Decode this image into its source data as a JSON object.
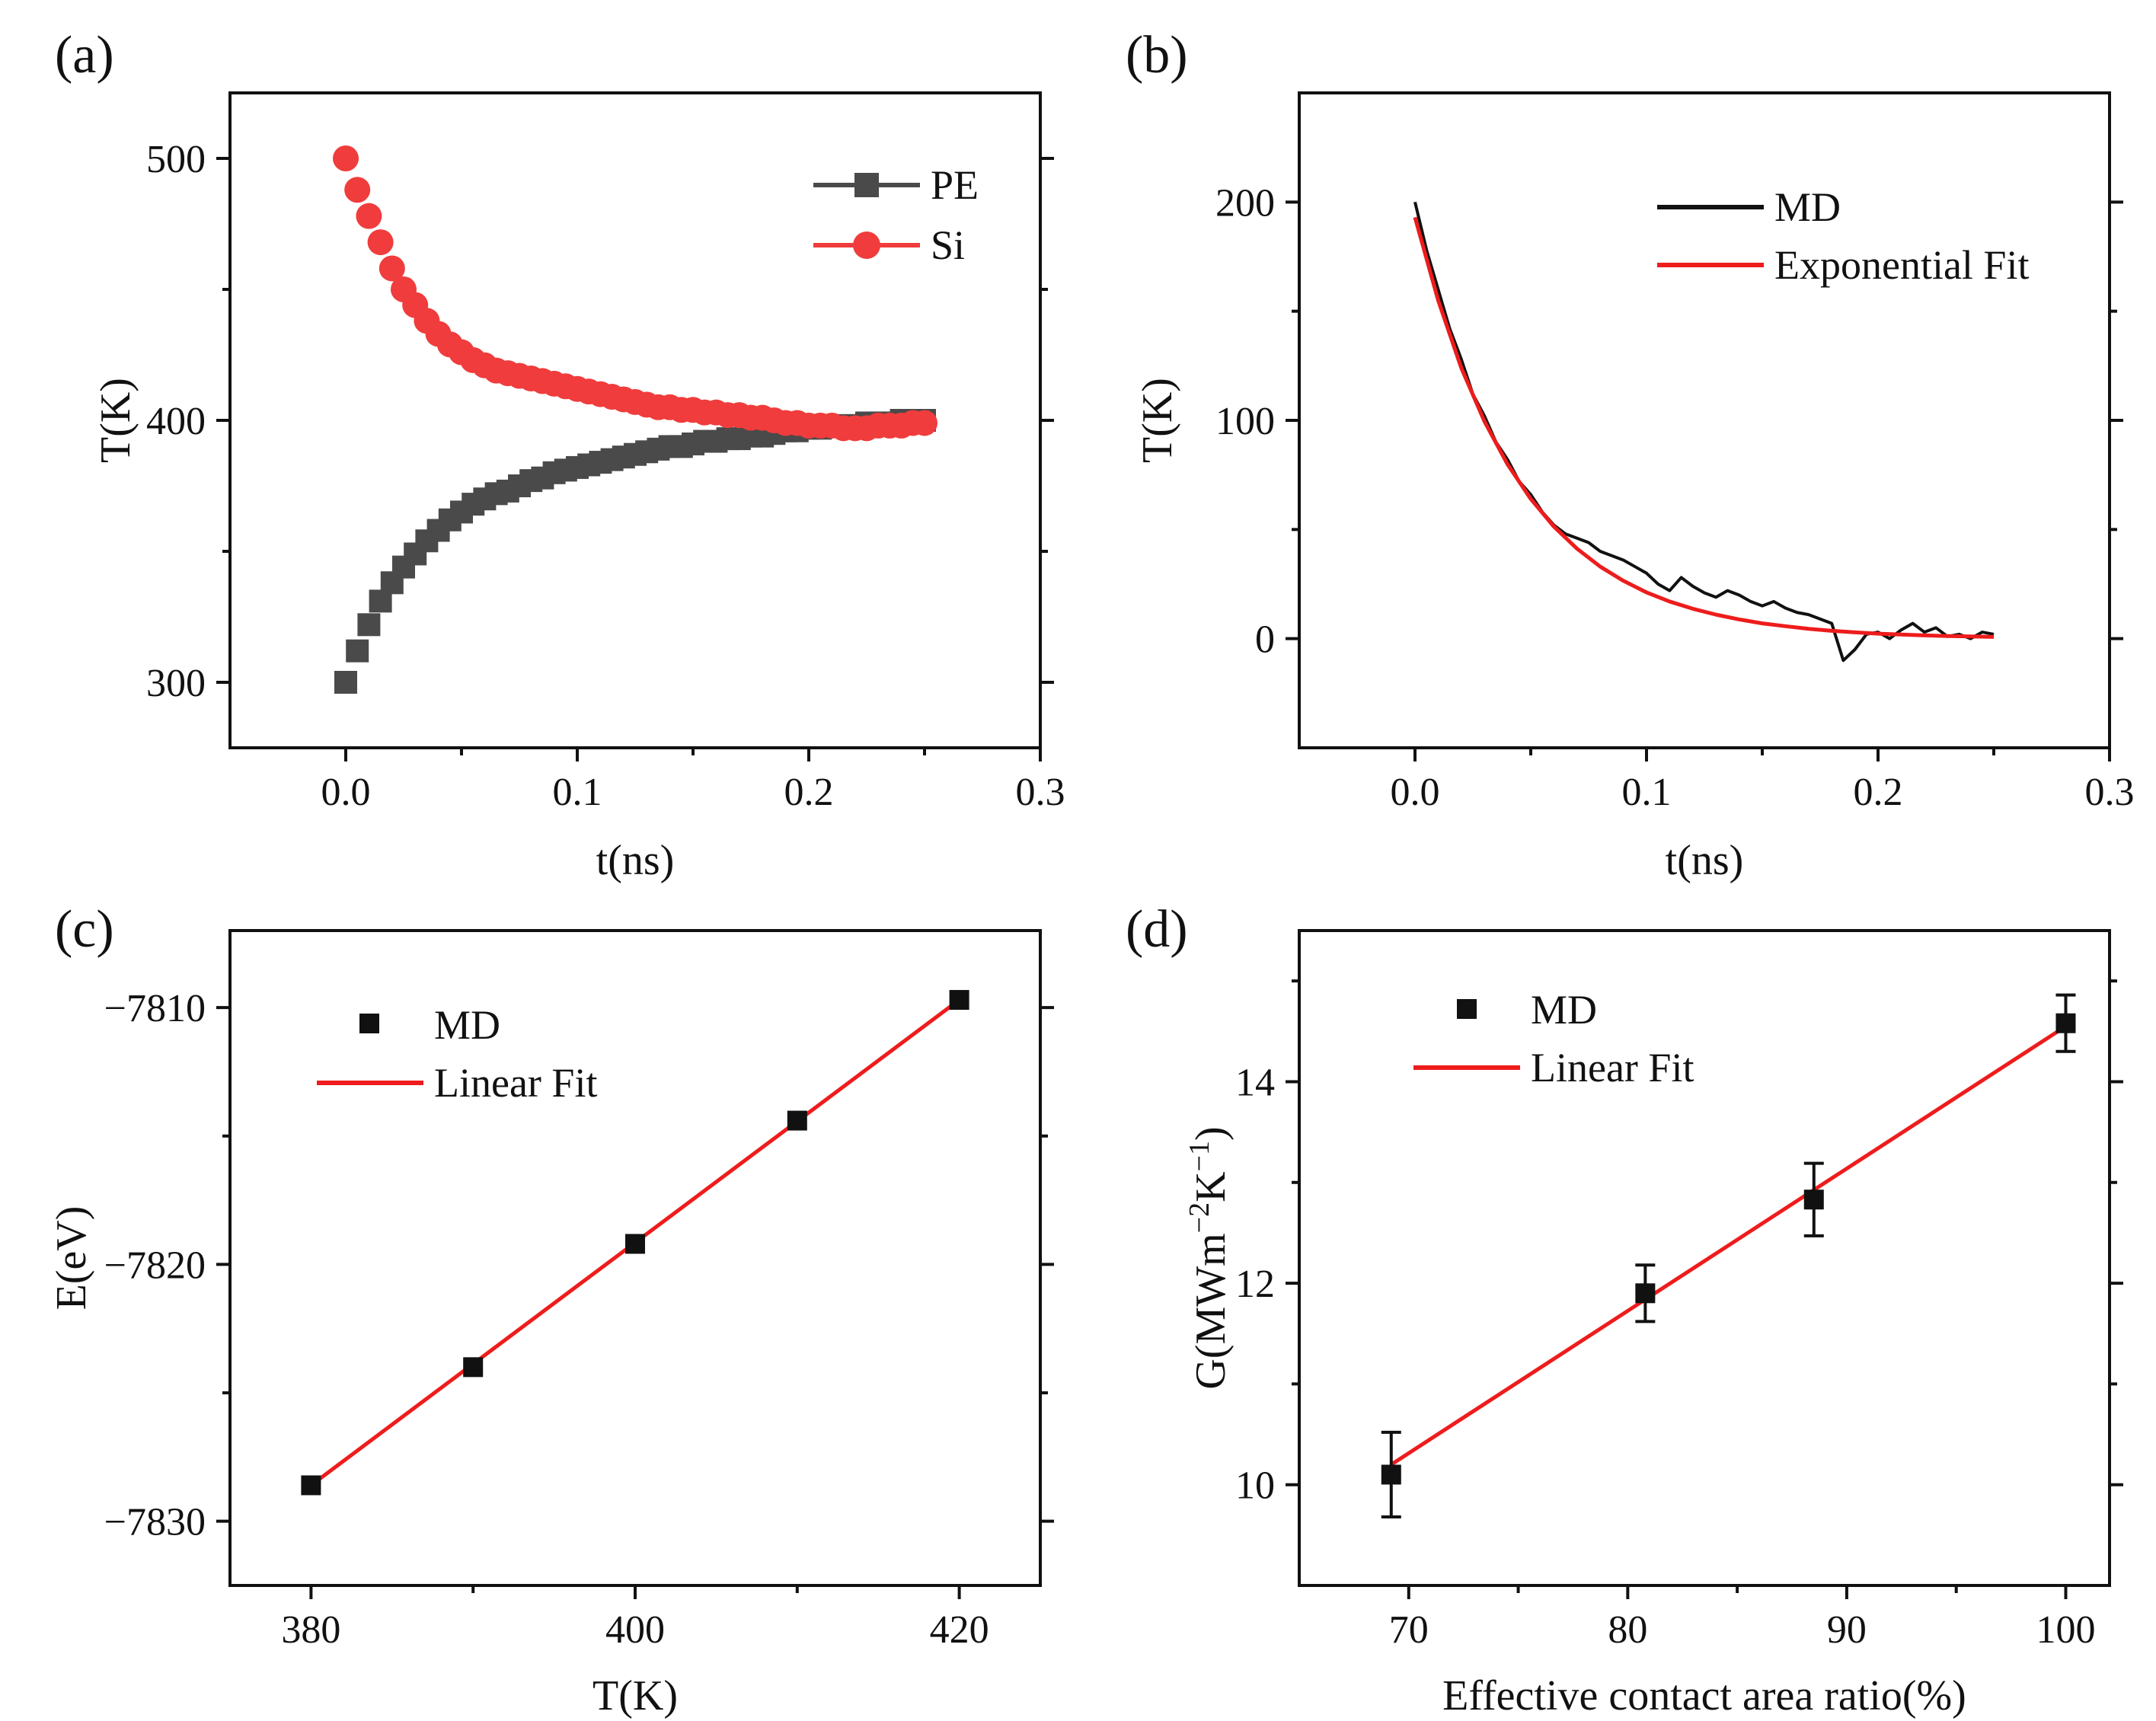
{
  "chart_data": [
    {
      "id": "a",
      "type": "scatter",
      "panel_label": "(a)",
      "xlabel": "t(ns)",
      "ylabel": "T(K)",
      "xlim": [
        -0.05,
        0.3
      ],
      "ylim": [
        275,
        525
      ],
      "xticks": [
        0.0,
        0.1,
        0.2,
        0.3
      ],
      "xtick_labels": [
        "0.0",
        "0.1",
        "0.2",
        "0.3"
      ],
      "yticks": [
        300,
        400,
        500
      ],
      "ytick_labels": [
        "300",
        "400",
        "500"
      ],
      "legend_position": "top-right",
      "series": [
        {
          "name": "PE",
          "marker": "square",
          "color": "#4a4a4a",
          "x": [
            0.0,
            0.005,
            0.01,
            0.015,
            0.02,
            0.025,
            0.03,
            0.035,
            0.04,
            0.045,
            0.05,
            0.055,
            0.06,
            0.065,
            0.07,
            0.075,
            0.08,
            0.085,
            0.09,
            0.095,
            0.1,
            0.105,
            0.11,
            0.115,
            0.12,
            0.125,
            0.13,
            0.135,
            0.14,
            0.145,
            0.15,
            0.155,
            0.16,
            0.165,
            0.17,
            0.175,
            0.18,
            0.185,
            0.19,
            0.195,
            0.2,
            0.205,
            0.21,
            0.215,
            0.22,
            0.225,
            0.23,
            0.235,
            0.24,
            0.245,
            0.25
          ],
          "y": [
            300,
            312,
            322,
            331,
            338,
            344,
            349,
            354,
            358,
            362,
            365,
            368,
            370,
            372,
            373,
            375,
            377,
            378,
            380,
            381,
            382,
            383,
            384,
            385,
            386,
            387,
            388,
            389,
            390,
            390,
            391,
            392,
            392,
            393,
            393,
            394,
            394,
            395,
            396,
            396,
            397,
            397,
            398,
            398,
            398,
            399,
            399,
            399,
            400,
            400,
            400
          ]
        },
        {
          "name": "Si",
          "marker": "circle",
          "color": "#f03c3c",
          "x": [
            0.0,
            0.005,
            0.01,
            0.015,
            0.02,
            0.025,
            0.03,
            0.035,
            0.04,
            0.045,
            0.05,
            0.055,
            0.06,
            0.065,
            0.07,
            0.075,
            0.08,
            0.085,
            0.09,
            0.095,
            0.1,
            0.105,
            0.11,
            0.115,
            0.12,
            0.125,
            0.13,
            0.135,
            0.14,
            0.145,
            0.15,
            0.155,
            0.16,
            0.165,
            0.17,
            0.175,
            0.18,
            0.185,
            0.19,
            0.195,
            0.2,
            0.205,
            0.21,
            0.215,
            0.22,
            0.225,
            0.23,
            0.235,
            0.24,
            0.245,
            0.25
          ],
          "y": [
            500,
            488,
            478,
            468,
            458,
            450,
            444,
            438,
            433,
            429,
            426,
            423,
            421,
            419,
            418,
            417,
            416,
            415,
            414,
            413,
            412,
            411,
            410,
            409,
            408,
            407,
            406,
            405,
            405,
            404,
            404,
            403,
            403,
            402,
            402,
            401,
            401,
            400,
            399,
            399,
            398,
            398,
            398,
            397,
            397,
            397,
            398,
            398,
            398,
            399,
            399
          ]
        }
      ]
    },
    {
      "id": "b",
      "type": "line",
      "panel_label": "(b)",
      "xlabel": "t(ns)",
      "ylabel": "T(K)",
      "xlim": [
        -0.05,
        0.3
      ],
      "ylim": [
        -50,
        250
      ],
      "xticks": [
        0.0,
        0.1,
        0.2,
        0.3
      ],
      "xtick_labels": [
        "0.0",
        "0.1",
        "0.2",
        "0.3"
      ],
      "yticks": [
        0,
        100,
        200
      ],
      "ytick_labels": [
        "0",
        "100",
        "200"
      ],
      "legend_position": "top-right",
      "series": [
        {
          "name": "MD",
          "color": "#111111",
          "x": [
            0.0,
            0.005,
            0.01,
            0.015,
            0.02,
            0.025,
            0.03,
            0.035,
            0.04,
            0.045,
            0.05,
            0.055,
            0.06,
            0.065,
            0.07,
            0.075,
            0.08,
            0.085,
            0.09,
            0.095,
            0.1,
            0.105,
            0.11,
            0.115,
            0.12,
            0.125,
            0.13,
            0.135,
            0.14,
            0.145,
            0.15,
            0.155,
            0.16,
            0.165,
            0.17,
            0.175,
            0.18,
            0.185,
            0.19,
            0.195,
            0.2,
            0.205,
            0.21,
            0.215,
            0.22,
            0.225,
            0.23,
            0.235,
            0.24,
            0.245,
            0.25
          ],
          "y": [
            200,
            178,
            160,
            142,
            128,
            112,
            102,
            90,
            82,
            72,
            66,
            58,
            52,
            48,
            46,
            44,
            40,
            38,
            36,
            33,
            30,
            25,
            22,
            28,
            24,
            21,
            19,
            22,
            20,
            17,
            15,
            17,
            14,
            12,
            11,
            9,
            7,
            -10,
            -5,
            2,
            3,
            0,
            4,
            7,
            3,
            5,
            1,
            2,
            0,
            3,
            2
          ]
        },
        {
          "name": "Exponential Fit",
          "color": "#ee1c1c",
          "x": [
            0.0,
            0.01,
            0.02,
            0.03,
            0.04,
            0.05,
            0.06,
            0.07,
            0.08,
            0.09,
            0.1,
            0.11,
            0.12,
            0.13,
            0.14,
            0.15,
            0.16,
            0.17,
            0.18,
            0.19,
            0.2,
            0.21,
            0.22,
            0.23,
            0.24,
            0.25
          ],
          "y": [
            193,
            155,
            124,
            99.5,
            79.8,
            64.0,
            51.3,
            41.2,
            33.0,
            26.5,
            21.2,
            17.0,
            13.7,
            11.0,
            8.8,
            7.0,
            5.7,
            4.5,
            3.6,
            2.9,
            2.3,
            1.9,
            1.5,
            1.2,
            1.0,
            0.8
          ]
        }
      ]
    },
    {
      "id": "c",
      "type": "scatter",
      "panel_label": "(c)",
      "xlabel": "T(K)",
      "ylabel": "E(eV)",
      "xlim": [
        375,
        425
      ],
      "ylim": [
        -7832.5,
        -7807
      ],
      "xticks": [
        380,
        400,
        420
      ],
      "xtick_labels": [
        "380",
        "400",
        "420"
      ],
      "yticks": [
        -7830,
        -7820,
        -7810
      ],
      "ytick_labels": [
        "−7830",
        "−7820",
        "−7810"
      ],
      "legend_position": "top-left",
      "series": [
        {
          "name": "MD",
          "marker": "square",
          "color": "#111111",
          "x": [
            380,
            390,
            400,
            410,
            420
          ],
          "y": [
            -7828.6,
            -7824.0,
            -7819.2,
            -7814.4,
            -7809.7
          ]
        },
        {
          "name": "Linear Fit",
          "color": "#ee1c1c",
          "x": [
            380,
            420
          ],
          "y": [
            -7828.6,
            -7809.7
          ]
        }
      ]
    },
    {
      "id": "d",
      "type": "scatter",
      "panel_label": "(d)",
      "xlabel": "Effective contact area ratio(%)",
      "ylabel_parts": [
        "G(MWm",
        "−2",
        "K",
        "−1",
        ")"
      ],
      "xlim": [
        65,
        102
      ],
      "ylim": [
        9,
        15.5
      ],
      "xticks": [
        70,
        80,
        90,
        100
      ],
      "xtick_labels": [
        "70",
        "80",
        "90",
        "100"
      ],
      "yticks": [
        10,
        12,
        14
      ],
      "ytick_labels": [
        "10",
        "12",
        "14"
      ],
      "legend_position": "top-left",
      "series": [
        {
          "name": "MD",
          "marker": "square",
          "color": "#111111",
          "x": [
            69.2,
            80.8,
            88.5,
            100
          ],
          "y": [
            10.1,
            11.9,
            12.83,
            14.58
          ],
          "error": [
            0.42,
            0.28,
            0.36,
            0.28
          ]
        },
        {
          "name": "Linear Fit",
          "color": "#ee1c1c",
          "x": [
            69.2,
            100
          ],
          "y": [
            10.2,
            14.55
          ]
        }
      ]
    }
  ]
}
